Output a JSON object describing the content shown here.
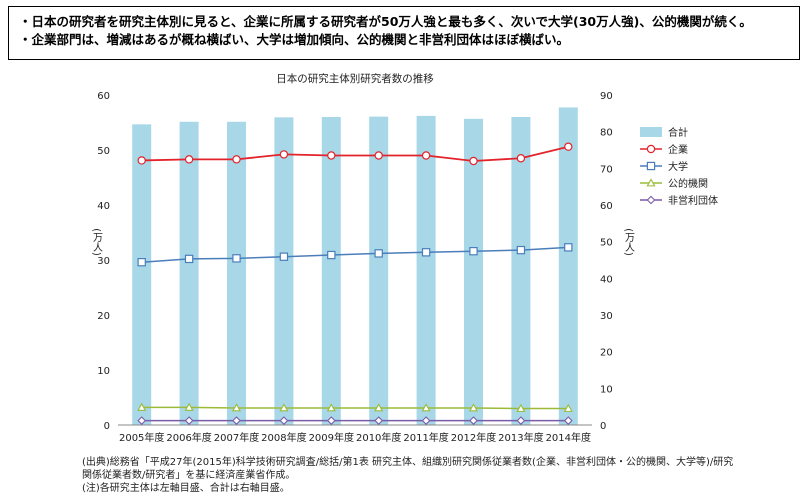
{
  "summary": {
    "line1": "・日本の研究者を研究主体別に見ると、企業に所属する研究者が50万人強と最も多く、次いで大学(30万人強)、公的機関が続く。",
    "line2": "・企業部門は、増減はあるが概ね横ばい、大学は増加傾向、公的機関と非営利団体はほぼ横ばい。"
  },
  "footer": {
    "source1": "(出典)総務省「平成27年(2015年)科学技術研究調査/総括/第1表 研究主体、組織別研究関係従業者数(企業、非営利団体・公的機関、大学等)/研究",
    "source2": "関係従業者数/研究者」を基に経済産業省作成。",
    "note": "(注)各研究主体は左軸目盛、合計は右軸目盛。"
  },
  "chart_data": {
    "type": "bar",
    "title": "日本の研究主体別研究者数の推移",
    "categories": [
      "2005年度",
      "2006年度",
      "2007年度",
      "2008年度",
      "2009年度",
      "2010年度",
      "2011年度",
      "2012年度",
      "2013年度",
      "2014年度"
    ],
    "ylabel_left": "(万人)",
    "ylabel_right": "(万人)",
    "ylim_left": [
      0,
      60
    ],
    "ylim_right": [
      0,
      90
    ],
    "yticks_left": [
      0,
      10,
      20,
      30,
      40,
      50,
      60
    ],
    "yticks_right": [
      0,
      10,
      20,
      30,
      40,
      50,
      60,
      70,
      80,
      90
    ],
    "legend_position": "right",
    "series": [
      {
        "name": "合計",
        "kind": "bar",
        "axis": "right",
        "color": "#a8d8e8",
        "values": [
          82.0,
          82.7,
          82.7,
          83.9,
          84.0,
          84.1,
          84.3,
          83.5,
          84.0,
          86.6
        ]
      },
      {
        "name": "企業",
        "kind": "line",
        "axis": "left",
        "color": "#e3232b",
        "marker": "circle",
        "values": [
          48.1,
          48.3,
          48.3,
          49.2,
          49.0,
          49.0,
          49.0,
          48.0,
          48.5,
          50.6
        ]
      },
      {
        "name": "大学",
        "kind": "line",
        "axis": "left",
        "color": "#4a7ebb",
        "marker": "square",
        "values": [
          29.6,
          30.2,
          30.3,
          30.6,
          30.9,
          31.2,
          31.4,
          31.6,
          31.8,
          32.3
        ]
      },
      {
        "name": "公的機関",
        "kind": "line",
        "axis": "left",
        "color": "#9bbb38",
        "marker": "triangle",
        "values": [
          3.2,
          3.2,
          3.1,
          3.1,
          3.1,
          3.1,
          3.1,
          3.1,
          3.0,
          3.0
        ]
      },
      {
        "name": "非営利団体",
        "kind": "line",
        "axis": "left",
        "color": "#7a5ca8",
        "marker": "diamond",
        "values": [
          0.8,
          0.8,
          0.8,
          0.8,
          0.8,
          0.8,
          0.8,
          0.8,
          0.8,
          0.8
        ]
      }
    ]
  }
}
